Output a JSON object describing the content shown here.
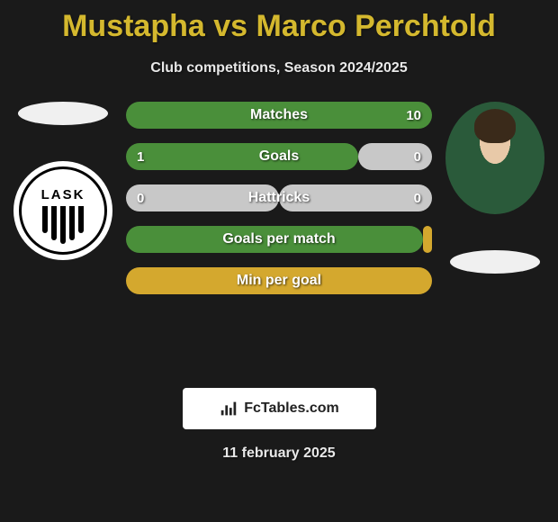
{
  "title": "Mustapha vs Marco Perchtold",
  "subtitle": "Club competitions, Season 2024/2025",
  "date": "11 february 2025",
  "attribution": "FcTables.com",
  "left_club_label": "LASK",
  "colors": {
    "title": "#d4b82e",
    "text": "#e8e8e8",
    "background": "#1a1a1a",
    "bar_green": "#4a8f3a",
    "bar_light": "#c8c8c8",
    "bar_orange": "#d4a82e",
    "attribution_bg": "#ffffff"
  },
  "stats": [
    {
      "label": "Matches",
      "left_val": "",
      "right_val": "10",
      "left_width_pct": 0,
      "right_width_pct": 100,
      "left_color": "#4a8f3a",
      "right_color": "#4a8f3a"
    },
    {
      "label": "Goals",
      "left_val": "1",
      "right_val": "0",
      "left_width_pct": 76,
      "right_width_pct": 24,
      "left_color": "#4a8f3a",
      "right_color": "#c8c8c8"
    },
    {
      "label": "Hattricks",
      "left_val": "0",
      "right_val": "0",
      "left_width_pct": 50,
      "right_width_pct": 50,
      "left_color": "#c8c8c8",
      "right_color": "#c8c8c8"
    },
    {
      "label": "Goals per match",
      "left_val": "",
      "right_val": "",
      "left_width_pct": 97,
      "right_width_pct": 3,
      "left_color": "#4a8f3a",
      "right_color": "#d4a82e"
    },
    {
      "label": "Min per goal",
      "left_val": "",
      "right_val": "",
      "left_width_pct": 0,
      "right_width_pct": 100,
      "left_color": "#d4a82e",
      "right_color": "#d4a82e"
    }
  ]
}
